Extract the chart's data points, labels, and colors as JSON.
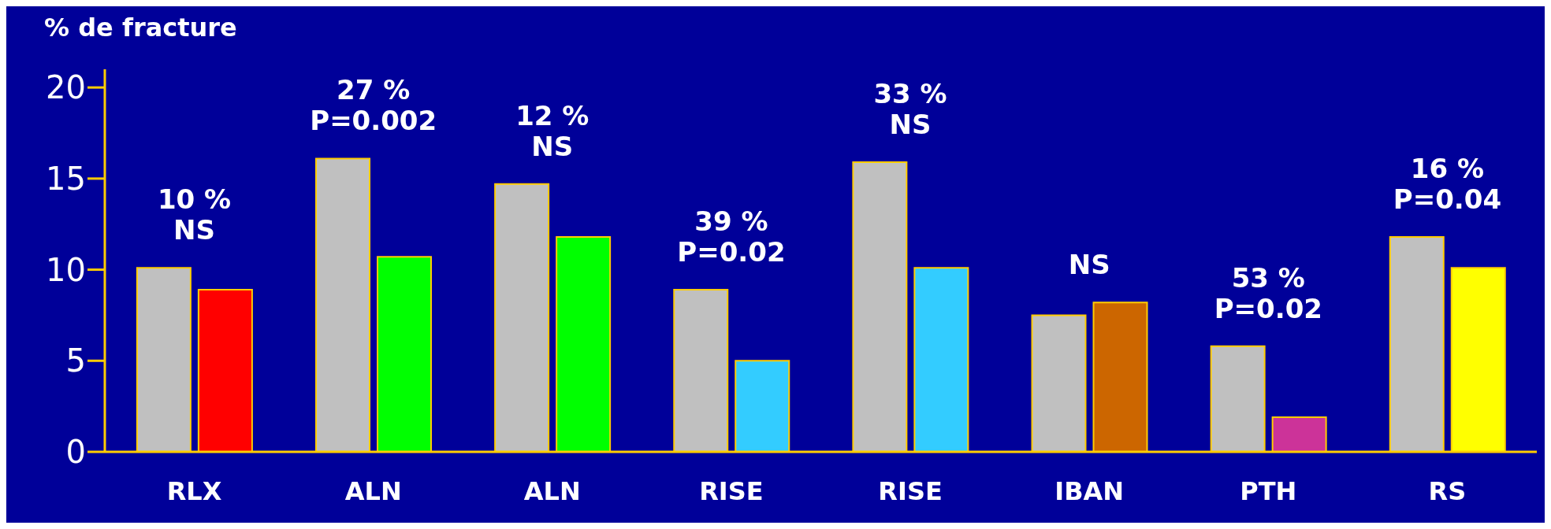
{
  "chart_data": {
    "type": "bar",
    "ylabel": "% de fracture",
    "categories": [
      "RLX",
      "ALN",
      "ALN",
      "RISE",
      "RISE",
      "IBAN",
      "PTH",
      "RS"
    ],
    "series": [
      {
        "color": "#c0c0c0",
        "values": [
          10.1,
          16.1,
          14.7,
          8.9,
          15.9,
          7.5,
          5.8,
          11.8
        ]
      },
      {
        "colors": [
          "#ff0000",
          "#00ff00",
          "#00ff00",
          "#33ccff",
          "#33ccff",
          "#cc6600",
          "#cc3399",
          "#ffff00"
        ],
        "values": [
          8.9,
          10.7,
          11.8,
          5.0,
          10.1,
          8.2,
          1.9,
          10.1
        ]
      }
    ],
    "ylim": [
      0,
      21
    ],
    "yticks": [
      0,
      5,
      10,
      15,
      20
    ],
    "annotations": [
      "10 %\nNS",
      "27 %\nP=0.002",
      "12 %\nNS",
      "39 %\nP=0.02",
      "33 %\nNS",
      "NS",
      "53 %\nP=0.02",
      "16 %\nP=0.04"
    ]
  }
}
